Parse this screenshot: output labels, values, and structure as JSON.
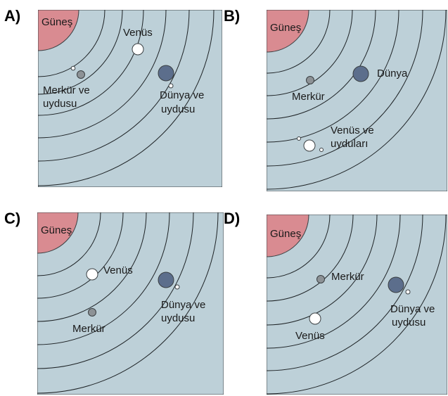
{
  "colors": {
    "background": "#bdd0d8",
    "orbit": "#1e2326",
    "sun": "#d98b91",
    "earth": "#5c6e8c",
    "mercury": "#8d9296",
    "venus": "#ffffff"
  },
  "panels": [
    {
      "letter": "A)",
      "sun_label": "Güneş",
      "labels": {
        "venus": "Venüs",
        "mercury": [
          "Merkür ve",
          "uydusu"
        ],
        "earth": [
          "Dünya ve",
          "uydusu"
        ]
      }
    },
    {
      "letter": "B)",
      "sun_label": "Güneş",
      "labels": {
        "mercury": [
          "Merkür"
        ],
        "earth": [
          "Dünya"
        ],
        "venus": [
          "Venüs ve",
          "uyduları"
        ]
      }
    },
    {
      "letter": "C)",
      "sun_label": "Güneş",
      "labels": {
        "venus": "Venüs",
        "mercury": "Merkür",
        "earth": [
          "Dünya ve",
          "uydusu"
        ]
      }
    },
    {
      "letter": "D)",
      "sun_label": "Güneş",
      "labels": {
        "mercury": "Merkür",
        "venus": "Venüs",
        "earth": [
          "Dünya ve",
          "uydusu"
        ]
      }
    }
  ]
}
